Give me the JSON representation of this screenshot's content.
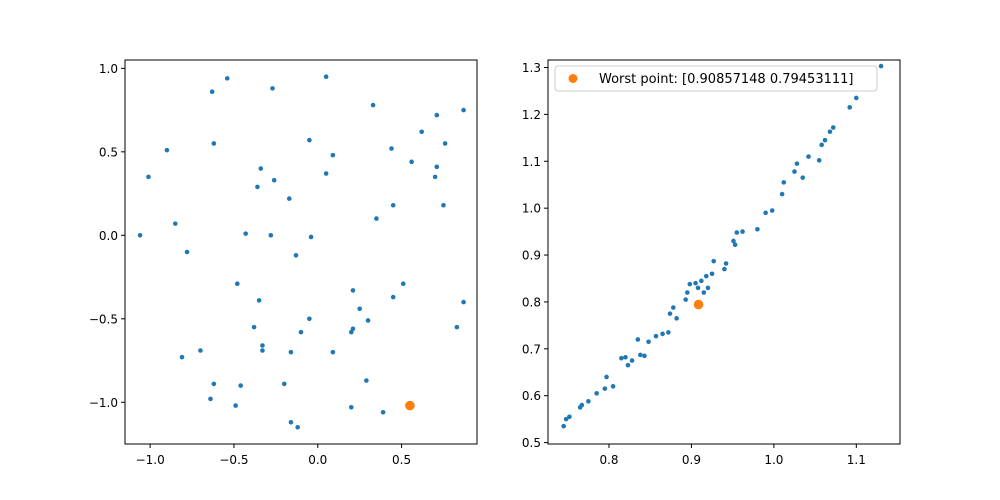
{
  "chart_data": [
    {
      "type": "scatter",
      "xlim": [
        -1.15,
        0.95
      ],
      "ylim": [
        -1.25,
        1.05
      ],
      "xticks": [
        -1.0,
        -0.5,
        0.0,
        0.5
      ],
      "yticks": [
        -1.0,
        -0.5,
        0.0,
        0.5,
        1.0
      ],
      "xtick_labels": [
        "−1.0",
        "−0.5",
        "0.0",
        "0.5"
      ],
      "ytick_labels": [
        "−1.0",
        "−0.5",
        "0.0",
        "0.5",
        "1.0"
      ],
      "grid": false,
      "series": [
        {
          "color": "#1f77b4",
          "marker_size": "small",
          "points": [
            [
              -1.06,
              0.0
            ],
            [
              -1.01,
              0.35
            ],
            [
              -0.9,
              0.51
            ],
            [
              -0.85,
              0.07
            ],
            [
              -0.78,
              -0.1
            ],
            [
              -0.81,
              -0.73
            ],
            [
              -0.7,
              -0.69
            ],
            [
              -0.63,
              0.86
            ],
            [
              -0.62,
              0.55
            ],
            [
              -0.54,
              0.94
            ],
            [
              -0.27,
              0.88
            ],
            [
              0.05,
              0.95
            ],
            [
              0.33,
              0.78
            ],
            [
              0.71,
              0.72
            ],
            [
              0.87,
              0.75
            ],
            [
              0.62,
              0.62
            ],
            [
              0.44,
              0.52
            ],
            [
              0.56,
              0.44
            ],
            [
              0.76,
              0.55
            ],
            [
              0.71,
              0.41
            ],
            [
              0.7,
              0.35
            ],
            [
              -0.34,
              0.4
            ],
            [
              -0.26,
              0.33
            ],
            [
              -0.36,
              0.29
            ],
            [
              -0.17,
              0.22
            ],
            [
              -0.05,
              0.57
            ],
            [
              0.09,
              0.48
            ],
            [
              0.05,
              0.37
            ],
            [
              0.35,
              0.1
            ],
            [
              0.45,
              0.18
            ],
            [
              0.75,
              0.18
            ],
            [
              -0.43,
              0.01
            ],
            [
              -0.28,
              0.0
            ],
            [
              -0.04,
              -0.01
            ],
            [
              -0.13,
              -0.12
            ],
            [
              -0.48,
              -0.29
            ],
            [
              -0.35,
              -0.39
            ],
            [
              -0.38,
              -0.55
            ],
            [
              -0.33,
              -0.66
            ],
            [
              -0.33,
              -0.69
            ],
            [
              -0.1,
              -0.58
            ],
            [
              -0.05,
              -0.5
            ],
            [
              -0.16,
              -0.7
            ],
            [
              0.09,
              -0.7
            ],
            [
              0.21,
              -0.33
            ],
            [
              0.25,
              -0.44
            ],
            [
              0.21,
              -0.56
            ],
            [
              0.2,
              -0.58
            ],
            [
              0.3,
              -0.51
            ],
            [
              0.45,
              -0.37
            ],
            [
              0.51,
              -0.29
            ],
            [
              0.83,
              -0.55
            ],
            [
              0.87,
              -0.4
            ],
            [
              -0.62,
              -0.89
            ],
            [
              -0.46,
              -0.9
            ],
            [
              -0.2,
              -0.89
            ],
            [
              -0.64,
              -0.98
            ],
            [
              -0.49,
              -1.02
            ],
            [
              -0.16,
              -1.12
            ],
            [
              -0.12,
              -1.15
            ],
            [
              0.2,
              -1.03
            ],
            [
              0.29,
              -0.87
            ],
            [
              0.39,
              -1.06
            ]
          ]
        },
        {
          "color": "#ff7f0e",
          "marker_size": "large",
          "points": [
            [
              0.55,
              -1.02
            ]
          ]
        }
      ]
    },
    {
      "type": "scatter",
      "xlim": [
        0.726,
        1.153
      ],
      "ylim": [
        0.497,
        1.316
      ],
      "xticks": [
        0.8,
        0.9,
        1.0,
        1.1
      ],
      "yticks": [
        0.5,
        0.6,
        0.7,
        0.8,
        0.9,
        1.0,
        1.1,
        1.2,
        1.3
      ],
      "xtick_labels": [
        "0.8",
        "0.9",
        "1.0",
        "1.1"
      ],
      "ytick_labels": [
        "0.5",
        "0.6",
        "0.7",
        "0.8",
        "0.9",
        "1.0",
        "1.1",
        "1.2",
        "1.3"
      ],
      "grid": false,
      "legend_position": "upper-left",
      "series": [
        {
          "color": "#1f77b4",
          "marker_size": "small",
          "points": [
            [
              0.745,
              0.535
            ],
            [
              0.748,
              0.55
            ],
            [
              0.752,
              0.555
            ],
            [
              0.765,
              0.575
            ],
            [
              0.767,
              0.58
            ],
            [
              0.775,
              0.588
            ],
            [
              0.785,
              0.605
            ],
            [
              0.795,
              0.615
            ],
            [
              0.797,
              0.64
            ],
            [
              0.805,
              0.62
            ],
            [
              0.815,
              0.68
            ],
            [
              0.82,
              0.682
            ],
            [
              0.823,
              0.665
            ],
            [
              0.828,
              0.675
            ],
            [
              0.835,
              0.72
            ],
            [
              0.838,
              0.687
            ],
            [
              0.843,
              0.685
            ],
            [
              0.848,
              0.715
            ],
            [
              0.857,
              0.727
            ],
            [
              0.865,
              0.732
            ],
            [
              0.872,
              0.735
            ],
            [
              0.874,
              0.775
            ],
            [
              0.878,
              0.788
            ],
            [
              0.882,
              0.765
            ],
            [
              0.893,
              0.805
            ],
            [
              0.895,
              0.82
            ],
            [
              0.898,
              0.838
            ],
            [
              0.905,
              0.84
            ],
            [
              0.908,
              0.83
            ],
            [
              0.912,
              0.845
            ],
            [
              0.915,
              0.82
            ],
            [
              0.918,
              0.855
            ],
            [
              0.92,
              0.83
            ],
            [
              0.925,
              0.86
            ],
            [
              0.927,
              0.887
            ],
            [
              0.94,
              0.87
            ],
            [
              0.942,
              0.882
            ],
            [
              0.951,
              0.93
            ],
            [
              0.953,
              0.922
            ],
            [
              0.955,
              0.948
            ],
            [
              0.962,
              0.95
            ],
            [
              0.98,
              0.955
            ],
            [
              0.99,
              0.99
            ],
            [
              0.998,
              0.995
            ],
            [
              1.01,
              1.03
            ],
            [
              1.012,
              1.055
            ],
            [
              1.025,
              1.078
            ],
            [
              1.028,
              1.095
            ],
            [
              1.035,
              1.065
            ],
            [
              1.042,
              1.11
            ],
            [
              1.055,
              1.102
            ],
            [
              1.058,
              1.135
            ],
            [
              1.062,
              1.145
            ],
            [
              1.068,
              1.163
            ],
            [
              1.072,
              1.172
            ],
            [
              1.092,
              1.215
            ],
            [
              1.1,
              1.235
            ],
            [
              1.13,
              1.303
            ]
          ]
        },
        {
          "name": "Worst point: [0.90857148 0.79453111]",
          "color": "#ff7f0e",
          "marker_size": "large",
          "points": [
            [
              0.90857148,
              0.79453111
            ]
          ]
        }
      ]
    }
  ]
}
